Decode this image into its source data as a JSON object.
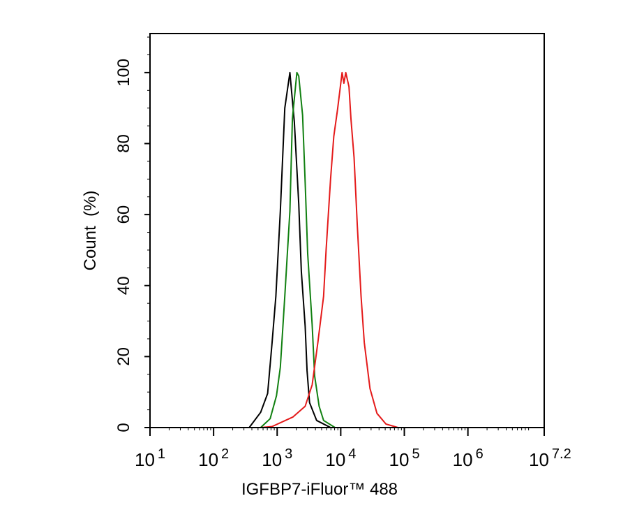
{
  "chart_data": {
    "type": "line",
    "title": "",
    "xlabel": "IGFBP7-iFluor™ 488",
    "ylabel": "Count  (%)",
    "x_scale": "log",
    "xlim": [
      10,
      15848932
    ],
    "ylim": [
      0,
      111
    ],
    "x_ticks": [
      {
        "base": "10",
        "exp": "1",
        "value": 10
      },
      {
        "base": "10",
        "exp": "2",
        "value": 100
      },
      {
        "base": "10",
        "exp": "3",
        "value": 1000
      },
      {
        "base": "10",
        "exp": "4",
        "value": 10000
      },
      {
        "base": "10",
        "exp": "5",
        "value": 100000
      },
      {
        "base": "10",
        "exp": "6",
        "value": 1000000
      },
      {
        "base": "10",
        "exp": "7.2",
        "value": 15848932
      }
    ],
    "y_ticks": [
      "0",
      "20",
      "40",
      "60",
      "80",
      "100"
    ],
    "grid": false,
    "legend": "none",
    "series": [
      {
        "color": "#000000",
        "x": [
          363,
          550,
          708,
          832,
          955,
          1122,
          1318,
          1585,
          1862,
          2188,
          2399,
          2754,
          2951,
          3236,
          4169,
          6918
        ],
        "y": [
          0,
          4.3,
          9.6,
          24,
          37,
          61,
          90,
          100,
          86,
          63,
          44,
          28.5,
          16,
          7,
          2,
          0
        ]
      },
      {
        "color": "#118011",
        "x": [
          550,
          776,
          977,
          1122,
          1318,
          1585,
          1738,
          2042,
          2188,
          2512,
          2754,
          3020,
          3548,
          3890,
          4571,
          5370,
          8128
        ],
        "y": [
          0,
          2.5,
          9,
          17,
          37,
          61,
          87,
          100,
          99,
          88,
          69,
          49,
          29,
          14.5,
          6,
          2,
          0
        ]
      },
      {
        "color": "#e41a1a",
        "x": [
          550,
          832,
          1778,
          2754,
          3548,
          4365,
          5370,
          5888,
          6918,
          7762,
          8913,
          10500,
          11220,
          12000,
          13490,
          14450,
          16220,
          18200,
          20890,
          23440,
          28840,
          37150,
          51290,
          79430
        ],
        "y": [
          0,
          0.3,
          3,
          6,
          12,
          24,
          37,
          50,
          70,
          82,
          89.6,
          100,
          97,
          100,
          96,
          87,
          76,
          57,
          37,
          24,
          11,
          4,
          1,
          0
        ]
      }
    ]
  }
}
